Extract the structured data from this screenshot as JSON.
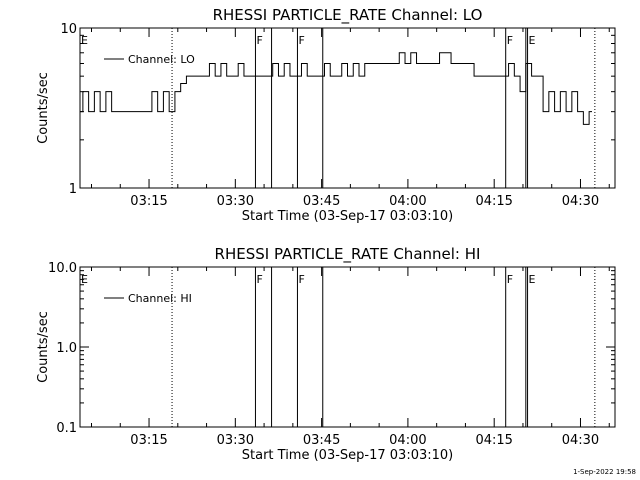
{
  "footer": {
    "timestamp": "1-Sep-2022 19:58"
  },
  "chart_data": [
    {
      "type": "line",
      "title": "RHESSI PARTICLE_RATE Channel: LO",
      "xlabel": "Start Time (03-Sep-17 03:03:10)",
      "ylabel": "Counts/sec",
      "yscale": "log",
      "xlim_minutes": [
        3.0,
        96.0
      ],
      "ylim": [
        1,
        10
      ],
      "yticks": [
        {
          "value": 1,
          "label": "1"
        },
        {
          "value": 10,
          "label": "10"
        }
      ],
      "xticks": [
        {
          "value": 15,
          "label": "03:15"
        },
        {
          "value": 30,
          "label": "03:30"
        },
        {
          "value": 45,
          "label": "03:45"
        },
        {
          "value": 60,
          "label": "04:00"
        },
        {
          "value": 75,
          "label": "04:15"
        },
        {
          "value": 90,
          "label": "04:30"
        }
      ],
      "legend": {
        "placement": "top-left",
        "entries": [
          "Channel: LO"
        ]
      },
      "markers": {
        "dotted": [
          19.0,
          92.5
        ],
        "solid": [
          33.5,
          36.3,
          40.8,
          45.2,
          77.0,
          80.5,
          80.8
        ],
        "labels": [
          {
            "text": "E",
            "x": 3.0
          },
          {
            "text": "F",
            "x": 33.5
          },
          {
            "text": "F",
            "x": 40.8
          },
          {
            "text": "F",
            "x": 77.0
          },
          {
            "text": "E",
            "x": 80.8
          }
        ]
      },
      "series": [
        {
          "name": "Channel: LO",
          "x": [
            3,
            4,
            5,
            6,
            7,
            8,
            9,
            10,
            11,
            12,
            13,
            14,
            15,
            16,
            17,
            18,
            19,
            20,
            21,
            22,
            23,
            24,
            25,
            26,
            27,
            28,
            29,
            30,
            31,
            32,
            33,
            34,
            35,
            36,
            37,
            38,
            39,
            40,
            41,
            42,
            43,
            44,
            45,
            46,
            47,
            48,
            49,
            50,
            51,
            52,
            53,
            54,
            55,
            56,
            57,
            58,
            59,
            60,
            61,
            62,
            63,
            64,
            65,
            66,
            67,
            68,
            69,
            70,
            71,
            72,
            73,
            74,
            75,
            76,
            77,
            78,
            79,
            80,
            81,
            82,
            83,
            84,
            85,
            86,
            87,
            88,
            89,
            90,
            91,
            92
          ],
          "y": [
            3,
            4,
            3,
            4,
            3,
            4,
            3,
            3,
            3,
            3,
            3,
            3,
            3,
            4,
            3,
            4,
            3,
            4,
            4.5,
            5,
            5,
            5,
            5,
            6,
            5,
            6,
            5,
            5,
            6,
            5,
            5,
            5,
            5,
            5,
            6,
            5,
            6,
            5,
            5,
            6,
            5,
            5,
            5,
            6,
            5,
            5,
            6,
            5,
            6,
            5,
            6,
            6,
            6,
            6,
            6,
            6,
            7,
            6,
            7,
            6,
            6,
            6,
            6,
            7,
            7,
            6,
            6,
            6,
            6,
            5,
            5,
            5,
            5,
            5,
            5,
            6,
            5,
            4,
            6,
            5,
            5,
            3,
            4,
            3,
            4,
            3,
            4,
            3,
            2.5,
            3
          ]
        }
      ]
    },
    {
      "type": "line",
      "title": "RHESSI PARTICLE_RATE Channel: HI",
      "xlabel": "Start Time (03-Sep-17 03:03:10)",
      "ylabel": "Counts/sec",
      "yscale": "log",
      "xlim_minutes": [
        3.0,
        96.0
      ],
      "ylim": [
        0.1,
        10
      ],
      "yticks": [
        {
          "value": 0.1,
          "label": "0.1"
        },
        {
          "value": 1,
          "label": "1.0"
        },
        {
          "value": 10,
          "label": "10.0"
        }
      ],
      "xticks": [
        {
          "value": 15,
          "label": "03:15"
        },
        {
          "value": 30,
          "label": "03:30"
        },
        {
          "value": 45,
          "label": "03:45"
        },
        {
          "value": 60,
          "label": "04:00"
        },
        {
          "value": 75,
          "label": "04:15"
        },
        {
          "value": 90,
          "label": "04:30"
        }
      ],
      "legend": {
        "placement": "top-left",
        "entries": [
          "Channel: HI"
        ]
      },
      "markers": {
        "dotted": [
          19.0,
          92.5
        ],
        "solid": [
          33.5,
          36.3,
          40.8,
          45.2,
          77.0,
          80.5,
          80.8
        ],
        "labels": [
          {
            "text": "E",
            "x": 3.0
          },
          {
            "text": "F",
            "x": 33.5
          },
          {
            "text": "F",
            "x": 40.8
          },
          {
            "text": "F",
            "x": 77.0
          },
          {
            "text": "E",
            "x": 80.8
          }
        ]
      },
      "series": [
        {
          "name": "Channel: HI",
          "x": [],
          "y": []
        }
      ]
    }
  ]
}
